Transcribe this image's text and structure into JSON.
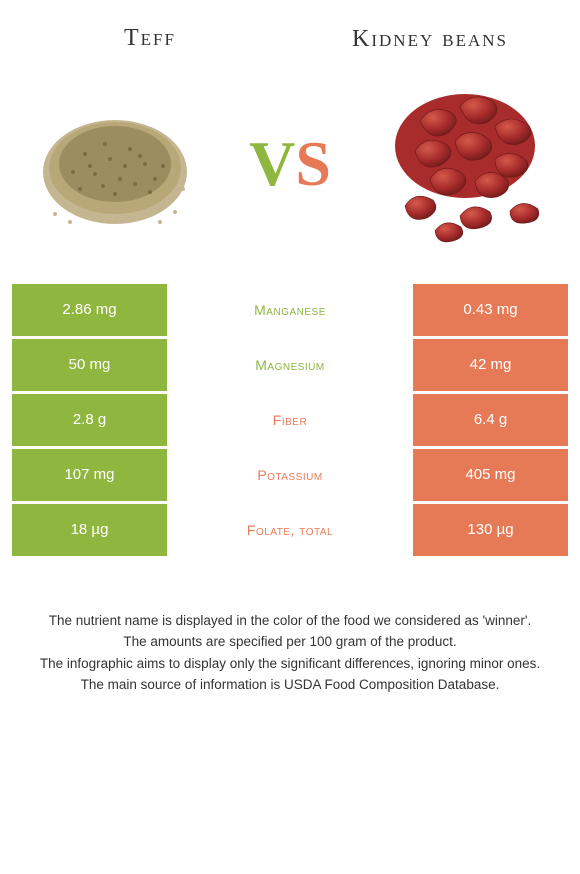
{
  "header": {
    "left_title": "Teff",
    "right_title": "Kidney beans"
  },
  "vs": {
    "v_letter": "V",
    "s_letter": "S",
    "v_color": "#8fb63f",
    "s_color": "#e77a56"
  },
  "colors": {
    "left_bg": "#8fb63f",
    "right_bg": "#e77a56",
    "mid_bg": "#ffffff",
    "text_light": "#ffffff",
    "title_color": "#333333"
  },
  "rows": [
    {
      "left": "2.86 mg",
      "label": "Manganese",
      "right": "0.43 mg",
      "winner": "left"
    },
    {
      "left": "50 mg",
      "label": "Magnesium",
      "right": "42 mg",
      "winner": "left"
    },
    {
      "left": "2.8 g",
      "label": "Fiber",
      "right": "6.4 g",
      "winner": "right"
    },
    {
      "left": "107 mg",
      "label": "Potassium",
      "right": "405 mg",
      "winner": "right"
    },
    {
      "left": "18 µg",
      "label": "Folate, total",
      "right": "130 µg",
      "winner": "right"
    }
  ],
  "notes": [
    "The nutrient name is displayed in the color of the food we considered as 'winner'.",
    "The amounts are specified per 100 gram of the product.",
    "The infographic aims to display only the significant differences, ignoring minor ones.",
    "The main source of information is USDA Food Composition Database."
  ],
  "illustrations": {
    "teff": {
      "base_colors": [
        "#b8a878",
        "#9c8d5f",
        "#c4b690",
        "#7a6d45"
      ],
      "background": "#ffffff"
    },
    "kidney_beans": {
      "bean_color": "#a82c2c",
      "bean_highlight": "#d45a4a",
      "bean_shadow": "#6a1818"
    }
  },
  "typography": {
    "title_fontsize": 24,
    "vs_fontsize": 64,
    "cell_value_fontsize": 15,
    "cell_label_fontsize": 14,
    "notes_fontsize": 13.5
  }
}
